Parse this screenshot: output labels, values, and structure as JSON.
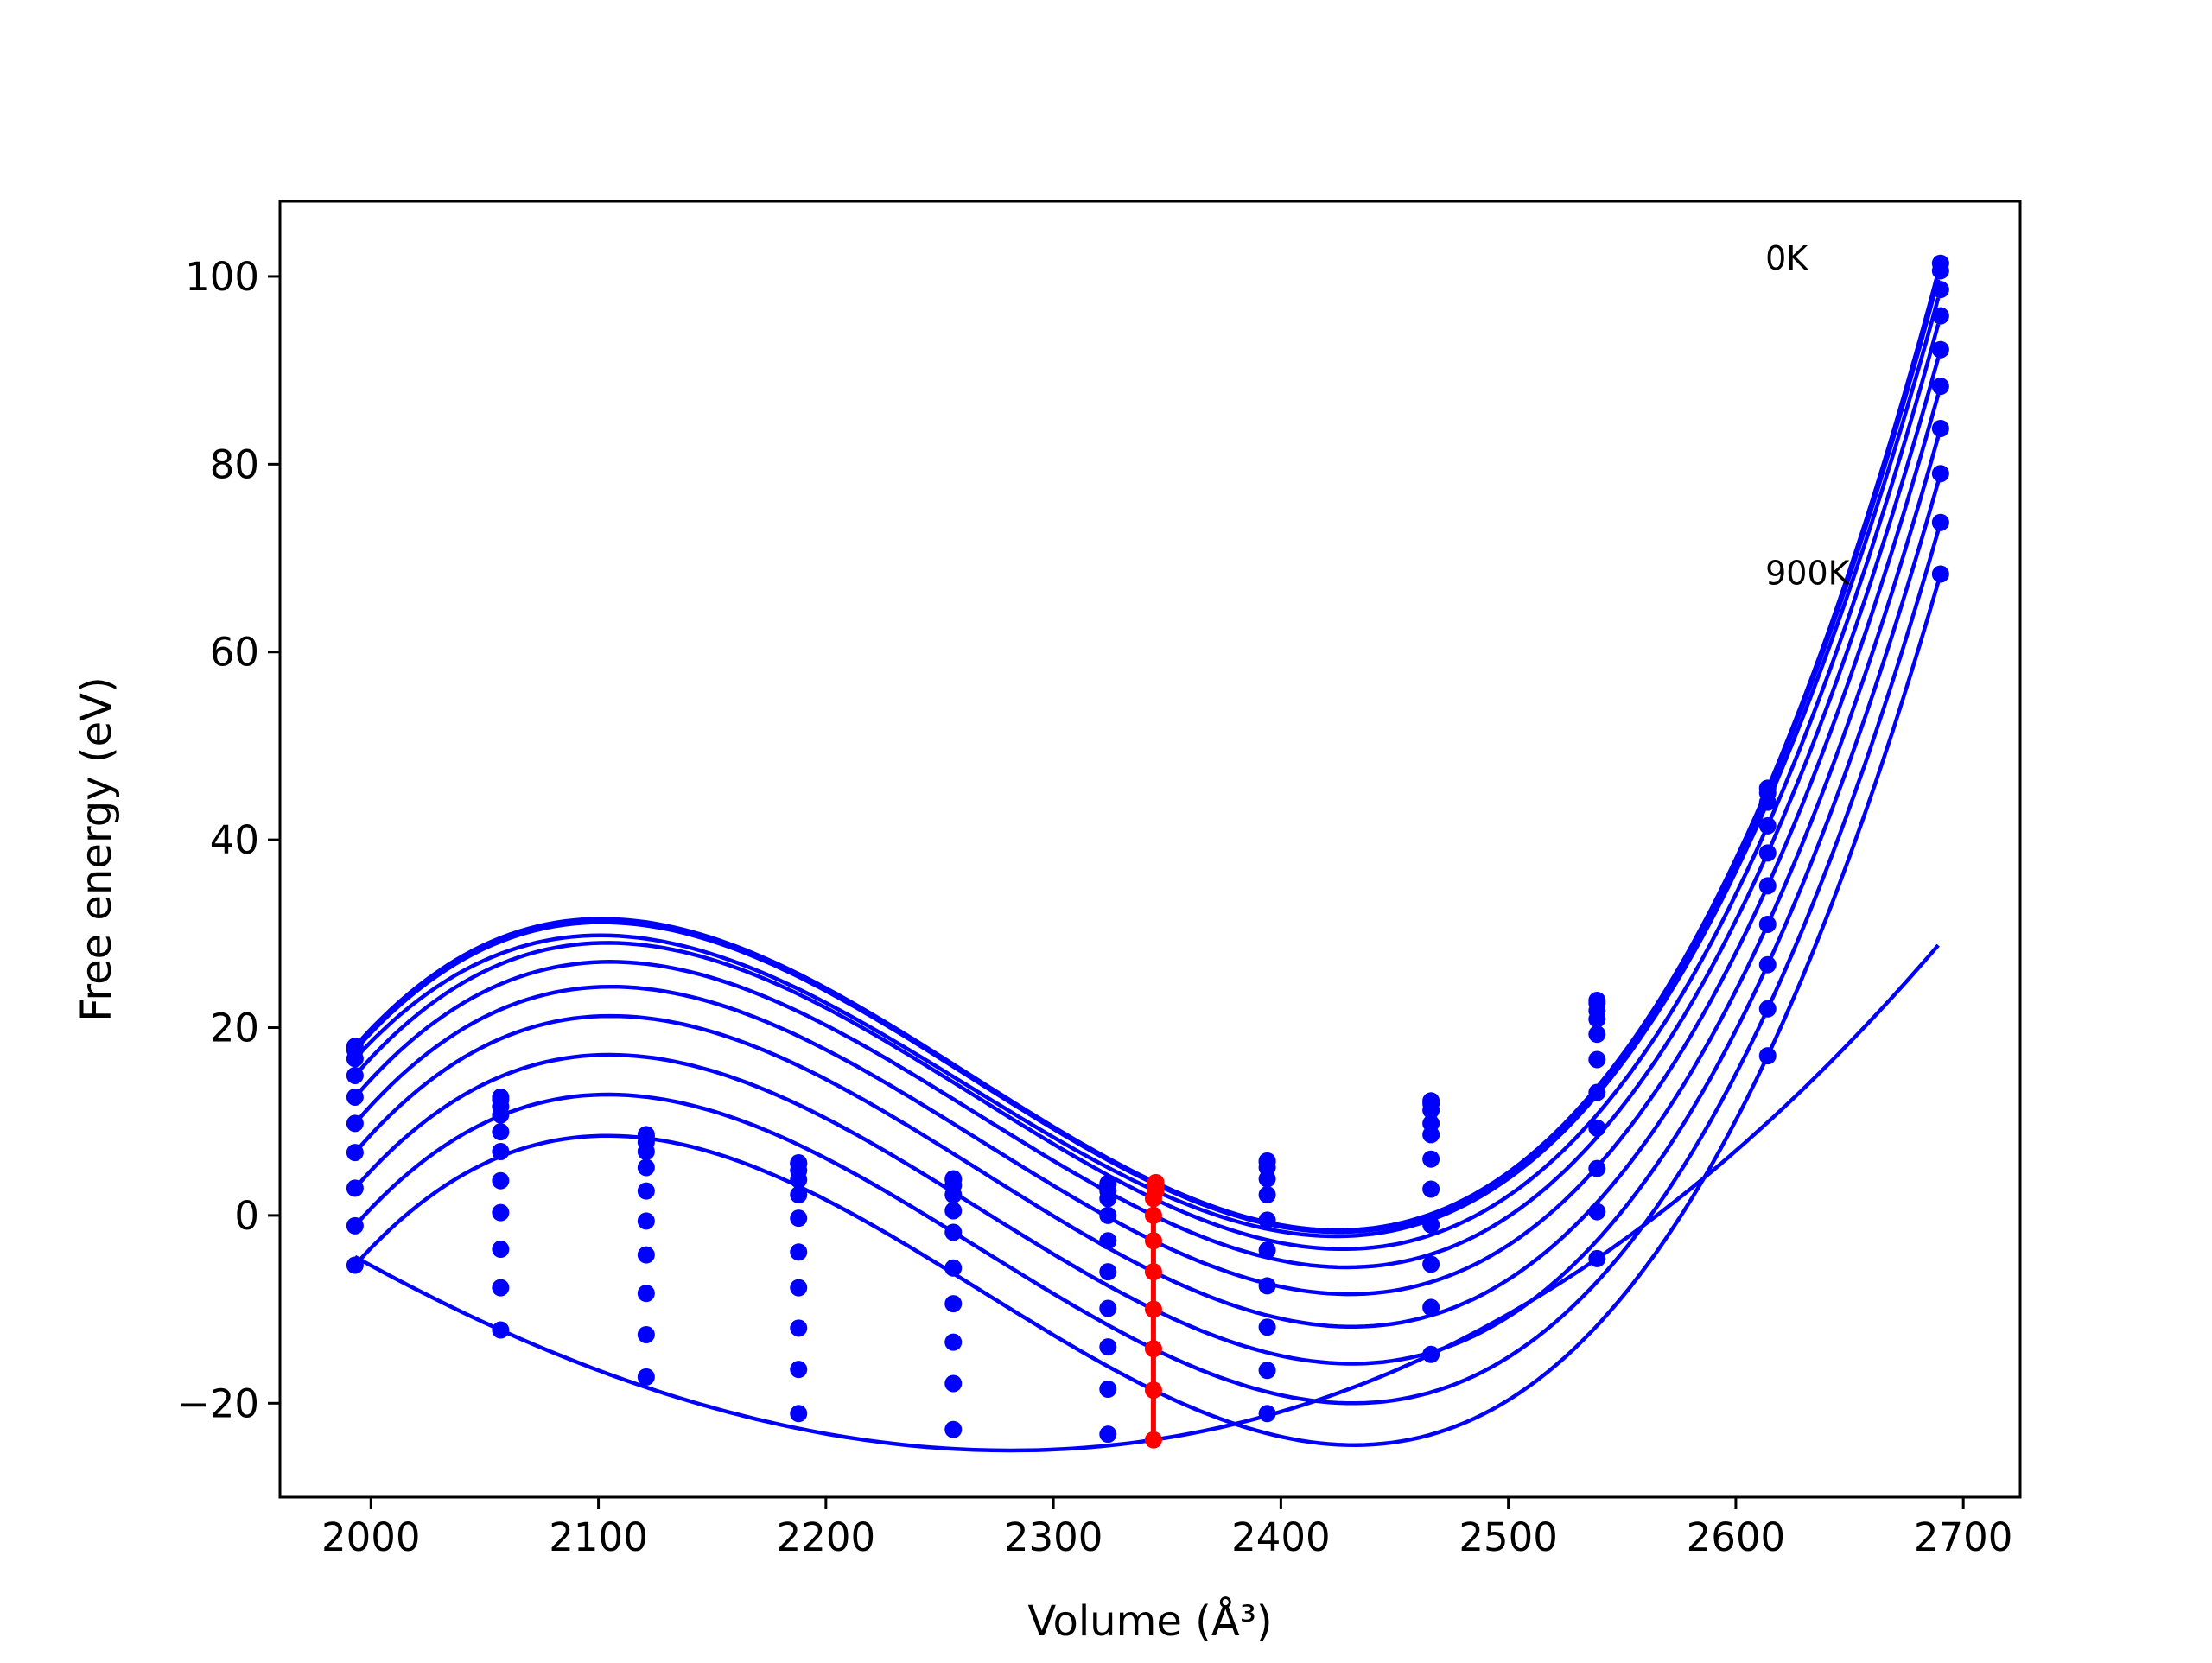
{
  "chart_data": {
    "type": "scatter+line",
    "xlabel": "Volume (Å³)",
    "ylabel": "Free energy (eV)",
    "xlim": [
      1960,
      2725
    ],
    "ylim": [
      -30,
      108
    ],
    "xticks": [
      2000,
      2100,
      2200,
      2300,
      2400,
      2500,
      2600,
      2700
    ],
    "yticks": [
      -20,
      0,
      20,
      40,
      60,
      80,
      100
    ],
    "grid": false,
    "legend": "none",
    "annotations": [
      {
        "text": "0K",
        "x": 2613,
        "y": 102
      },
      {
        "text": "900K",
        "x": 2613,
        "y": 68.5
      }
    ],
    "colors": {
      "isotherm": "#0000ff",
      "minimum": "#ff0000"
    },
    "volumes": [
      1993,
      2057,
      2121,
      2188,
      2256,
      2324,
      2394,
      2466,
      2539,
      2614,
      2690
    ],
    "series": [
      {
        "values": [
          18.0,
          12.6,
          8.6,
          5.6,
          3.9,
          3.4,
          5.8,
          12.2,
          22.9,
          45.5,
          101.4
        ],
        "fit_minimum": [
          2345,
          3.5
        ]
      },
      {
        "values": [
          17.6,
          12.3,
          8.4,
          5.5,
          3.8,
          3.3,
          5.7,
          11.9,
          22.6,
          45.0,
          100.6
        ],
        "fit_minimum": [
          2345,
          3.3
        ]
      },
      {
        "values": [
          16.7,
          11.6,
          7.8,
          4.8,
          3.2,
          2.6,
          5.1,
          11.2,
          21.8,
          44.0,
          98.6
        ],
        "fit_minimum": [
          2345,
          2.6
        ]
      },
      {
        "values": [
          14.9,
          10.7,
          6.8,
          3.8,
          2.2,
          1.8,
          3.9,
          9.8,
          20.9,
          41.5,
          95.8
        ],
        "fit_minimum": [
          2344,
          1.8
        ]
      },
      {
        "values": [
          12.6,
          8.9,
          5.1,
          2.2,
          0.5,
          0.0,
          2.2,
          8.6,
          19.3,
          38.6,
          92.2
        ],
        "fit_minimum": [
          2344,
          0.0
        ]
      },
      {
        "values": [
          9.8,
          6.8,
          2.6,
          -0.3,
          -1.8,
          -2.7,
          -0.5,
          6.0,
          16.6,
          35.1,
          88.3
        ],
        "fit_minimum": [
          2344,
          -2.7
        ]
      },
      {
        "values": [
          6.7,
          3.7,
          -0.6,
          -3.9,
          -5.6,
          -6.0,
          -3.7,
          2.8,
          13.1,
          31.0,
          83.8
        ],
        "fit_minimum": [
          2344,
          -6.0
        ]
      },
      {
        "values": [
          2.9,
          0.3,
          -4.2,
          -7.7,
          -9.4,
          -9.9,
          -7.5,
          -1.0,
          9.3,
          26.7,
          79.0
        ],
        "fit_minimum": [
          2344,
          -10.0
        ]
      },
      {
        "values": [
          -1.1,
          -3.6,
          -8.3,
          -12.0,
          -13.5,
          -14.0,
          -11.9,
          -5.2,
          5.0,
          22.0,
          73.8
        ],
        "fit_minimum": [
          2344,
          -14.2
        ]
      },
      {
        "values": [
          -5.3,
          -7.7,
          -12.7,
          -16.4,
          -17.9,
          -18.5,
          -16.5,
          -9.8,
          0.4,
          17.0,
          68.3
        ],
        "fit_minimum": [
          2344,
          -18.6
        ]
      },
      {
        "values": [
          null,
          -12.2,
          -17.2,
          -21.1,
          -22.8,
          -23.3,
          -21.1,
          -14.8,
          -4.6,
          null,
          null
        ],
        "fit_minimum": [
          2344,
          -23.9
        ]
      }
    ]
  }
}
